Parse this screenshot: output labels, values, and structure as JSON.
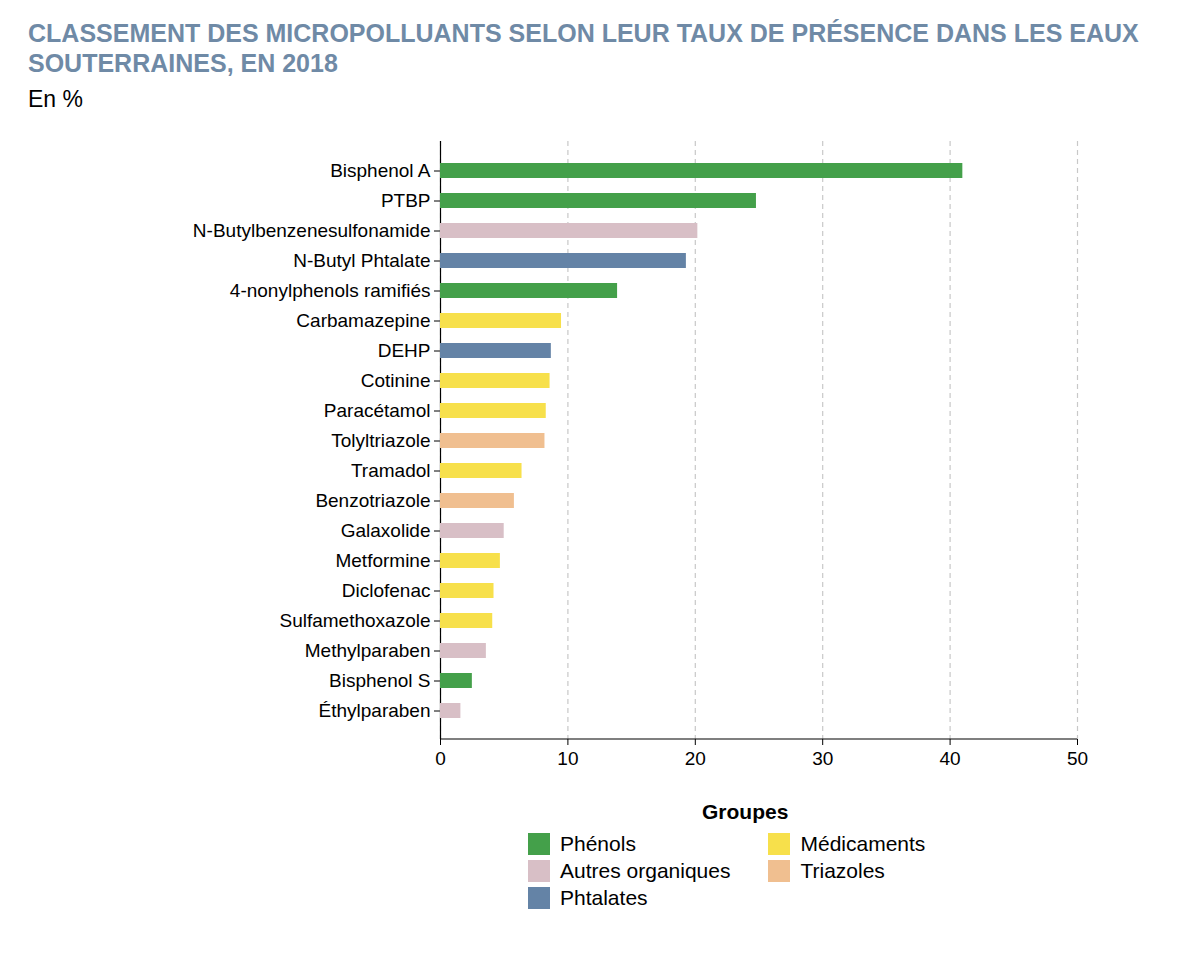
{
  "chart_data": {
    "type": "bar",
    "orientation": "horizontal",
    "title": "CLASSEMENT DES MICROPOLLUANTS SELON LEUR TAUX DE PRÉSENCE DANS LES EAUX SOUTERRAINES, EN 2018",
    "subtitle": "En %",
    "categories": [
      "Bisphenol A",
      "PTBP",
      "N-Butylbenzenesulfonamide",
      "N-Butyl Phtalate",
      "4-nonylphenols ramifiés",
      "Carbamazepine",
      "DEHP",
      "Cotinine",
      "Paracétamol",
      "Tolyltriazole",
      "Tramadol",
      "Benzotriazole",
      "Galaxolide",
      "Metformine",
      "Diclofenac",
      "Sulfamethoxazole",
      "Methylparaben",
      "Bisphenol S",
      "Éthylparaben"
    ],
    "series": [
      {
        "name": "Phénols",
        "color": "#44a04a",
        "values": [
          41,
          24.8,
          null,
          null,
          13.9,
          null,
          null,
          null,
          null,
          null,
          null,
          null,
          null,
          null,
          null,
          null,
          null,
          2.5,
          null
        ]
      },
      {
        "name": "Autres organiques",
        "color": "#d8bfc6",
        "values": [
          null,
          null,
          20.2,
          null,
          null,
          null,
          null,
          null,
          null,
          null,
          null,
          null,
          5.0,
          null,
          null,
          null,
          3.6,
          null,
          1.6
        ]
      },
      {
        "name": "Phtalates",
        "color": "#6483a6",
        "values": [
          null,
          null,
          null,
          19.3,
          null,
          null,
          8.7,
          null,
          null,
          null,
          null,
          null,
          null,
          null,
          null,
          null,
          null,
          null,
          null
        ]
      },
      {
        "name": "Médicaments",
        "color": "#f7e04b",
        "values": [
          null,
          null,
          null,
          null,
          null,
          9.5,
          null,
          8.6,
          8.3,
          null,
          6.4,
          null,
          null,
          4.7,
          4.2,
          4.1,
          null,
          null,
          null
        ]
      },
      {
        "name": "Triazoles",
        "color": "#f0bf90",
        "values": [
          null,
          null,
          null,
          null,
          null,
          null,
          null,
          null,
          null,
          8.2,
          null,
          5.8,
          null,
          null,
          null,
          null,
          null,
          null,
          null
        ]
      }
    ],
    "xlim": [
      0,
      50
    ],
    "xticks": [
      0,
      10,
      20,
      30,
      40,
      50
    ],
    "grid": true,
    "legend": "bottom",
    "legend_title": "Groupes"
  }
}
